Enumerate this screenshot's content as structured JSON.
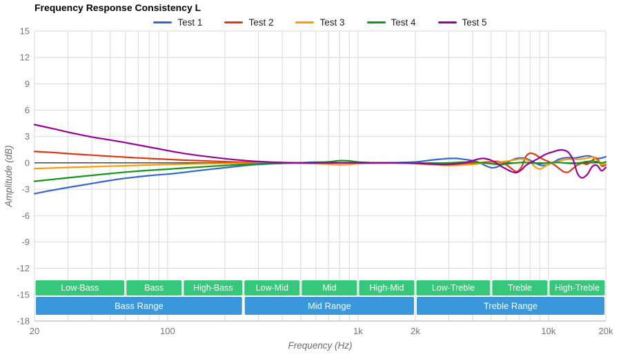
{
  "chart_data": {
    "type": "line",
    "title": "Frequency Response Consistency L",
    "xlabel": "Frequency (Hz)",
    "ylabel": "Amplitude (dB)",
    "x_scale": "log",
    "xlim": [
      20,
      20000
    ],
    "ylim": [
      -18,
      15
    ],
    "grid": true,
    "legend_position": "top",
    "y_ticks": [
      15,
      12,
      9,
      6,
      3,
      0,
      -3,
      -6,
      -9,
      -12,
      -15,
      -18
    ],
    "x_ticks": [
      {
        "f": 20,
        "label": "20"
      },
      {
        "f": 100,
        "label": "100"
      },
      {
        "f": 1000,
        "label": "1k"
      },
      {
        "f": 2000,
        "label": "2k"
      },
      {
        "f": 10000,
        "label": "10k"
      },
      {
        "f": 20000,
        "label": "20k"
      }
    ],
    "x": [
      20,
      25,
      30,
      40,
      50,
      60,
      80,
      100,
      120,
      150,
      200,
      250,
      300,
      400,
      500,
      600,
      700,
      800,
      900,
      1000,
      1200,
      1500,
      1800,
      2000,
      2200,
      2500,
      2800,
      3000,
      3300,
      3600,
      4000,
      4300,
      4600,
      5000,
      5300,
      5600,
      6000,
      6400,
      6800,
      7200,
      7600,
      8000,
      8500,
      9000,
      9500,
      10000,
      10700,
      11300,
      12000,
      12700,
      13500,
      14200,
      15000,
      16000,
      17000,
      18000,
      19000,
      20000
    ],
    "series": [
      {
        "name": "Test 1",
        "color": "#3366CC",
        "values": [
          -3.5,
          -3.1,
          -2.8,
          -2.35,
          -2.0,
          -1.75,
          -1.45,
          -1.28,
          -1.1,
          -0.85,
          -0.55,
          -0.32,
          -0.18,
          -0.06,
          0.02,
          0.08,
          0.06,
          0.02,
          0.0,
          0.0,
          0.0,
          0.02,
          0.06,
          0.1,
          0.2,
          0.35,
          0.45,
          0.5,
          0.5,
          0.4,
          0.25,
          0.05,
          -0.25,
          -0.55,
          -0.5,
          -0.28,
          0.0,
          0.3,
          0.5,
          0.55,
          0.5,
          0.3,
          0.0,
          -0.25,
          -0.3,
          -0.18,
          0.1,
          0.4,
          0.55,
          0.6,
          0.55,
          0.6,
          0.7,
          0.8,
          0.7,
          0.5,
          0.55,
          0.7
        ]
      },
      {
        "name": "Test 2",
        "color": "#DC3912",
        "values": [
          1.3,
          1.18,
          1.05,
          0.88,
          0.75,
          0.65,
          0.5,
          0.4,
          0.32,
          0.24,
          0.14,
          0.08,
          0.04,
          0.0,
          0.0,
          0.0,
          0.0,
          0.0,
          0.0,
          0.0,
          0.0,
          0.0,
          -0.02,
          -0.05,
          -0.08,
          -0.12,
          -0.15,
          -0.15,
          -0.12,
          -0.08,
          -0.04,
          0.0,
          0.06,
          0.12,
          0.18,
          0.1,
          -0.2,
          -0.65,
          -1.0,
          -0.5,
          0.7,
          1.1,
          0.95,
          0.6,
          0.35,
          0.15,
          -0.2,
          -0.6,
          -1.0,
          -1.05,
          -0.6,
          -0.25,
          -0.05,
          -0.15,
          0.3,
          0.5,
          -0.35,
          -0.2
        ]
      },
      {
        "name": "Test 3",
        "color": "#FF9900",
        "values": [
          -0.65,
          -0.58,
          -0.52,
          -0.44,
          -0.38,
          -0.32,
          -0.24,
          -0.18,
          -0.14,
          -0.1,
          -0.06,
          -0.04,
          -0.02,
          -0.02,
          -0.05,
          -0.1,
          -0.16,
          -0.22,
          -0.18,
          -0.1,
          -0.04,
          -0.02,
          -0.05,
          -0.1,
          -0.15,
          -0.22,
          -0.28,
          -0.3,
          -0.28,
          -0.22,
          -0.16,
          -0.1,
          -0.05,
          0.0,
          0.05,
          0.1,
          0.18,
          0.28,
          0.38,
          0.45,
          0.4,
          0.15,
          -0.45,
          -0.7,
          -0.45,
          -0.15,
          0.05,
          0.2,
          0.35,
          0.4,
          0.45,
          0.4,
          0.45,
          0.55,
          0.65,
          0.3,
          -0.2,
          0.1
        ]
      },
      {
        "name": "Test 4",
        "color": "#109618",
        "values": [
          -2.1,
          -1.88,
          -1.7,
          -1.42,
          -1.22,
          -1.05,
          -0.85,
          -0.72,
          -0.6,
          -0.46,
          -0.3,
          -0.18,
          -0.1,
          -0.04,
          0.0,
          0.05,
          0.12,
          0.25,
          0.22,
          0.1,
          0.02,
          0.0,
          0.0,
          0.0,
          -0.04,
          -0.08,
          -0.05,
          0.0,
          0.05,
          0.08,
          0.1,
          0.05,
          0.0,
          -0.1,
          -0.15,
          -0.18,
          -0.12,
          -0.05,
          0.0,
          0.05,
          0.05,
          0.0,
          -0.05,
          -0.08,
          -0.05,
          0.0,
          0.05,
          0.05,
          0.0,
          -0.05,
          -0.08,
          -0.05,
          0.05,
          0.15,
          0.2,
          0.1,
          0.0,
          0.1
        ]
      },
      {
        "name": "Test 5",
        "color": "#990099",
        "values": [
          4.35,
          3.9,
          3.5,
          2.95,
          2.6,
          2.3,
          1.8,
          1.4,
          1.1,
          0.8,
          0.48,
          0.28,
          0.16,
          0.04,
          0.0,
          0.0,
          0.0,
          0.0,
          0.0,
          0.0,
          0.0,
          0.0,
          -0.02,
          -0.05,
          -0.1,
          -0.15,
          -0.18,
          -0.18,
          -0.12,
          0.0,
          0.25,
          0.45,
          0.5,
          0.3,
          0.0,
          -0.35,
          -0.7,
          -1.0,
          -1.1,
          -0.8,
          -0.3,
          0.0,
          0.3,
          0.6,
          0.9,
          1.1,
          1.3,
          1.45,
          1.45,
          1.2,
          0.3,
          -1.2,
          -1.7,
          -1.3,
          -0.4,
          -0.3,
          -0.9,
          -0.5
        ]
      }
    ],
    "frequency_bands": {
      "sub_bands": [
        {
          "label": "Low-Bass",
          "from": 20,
          "to": 60
        },
        {
          "label": "Bass",
          "from": 60,
          "to": 120
        },
        {
          "label": "High-Bass",
          "from": 120,
          "to": 250
        },
        {
          "label": "Low-Mid",
          "from": 250,
          "to": 500
        },
        {
          "label": "Mid",
          "from": 500,
          "to": 1000
        },
        {
          "label": "High-Mid",
          "from": 1000,
          "to": 2000
        },
        {
          "label": "Low-Treble",
          "from": 2000,
          "to": 5000
        },
        {
          "label": "Treble",
          "from": 5000,
          "to": 10000
        },
        {
          "label": "High-Treble",
          "from": 10000,
          "to": 20000
        }
      ],
      "range_bands": [
        {
          "label": "Bass Range",
          "from": 20,
          "to": 250
        },
        {
          "label": "Mid Range",
          "from": 250,
          "to": 2000
        },
        {
          "label": "Treble Range",
          "from": 2000,
          "to": 20000
        }
      ],
      "sub_band_color": "#35c87a",
      "range_band_color": "#3a97dc",
      "band_text_color": "#ffffff"
    }
  },
  "colors": {
    "background": "#ffffff",
    "grid": "#d8d8d8",
    "axis_line": "#a8a8a8",
    "zero_line": "#222222",
    "tick_label": "#757575",
    "axis_title": "#6b6b6b",
    "title": "#000000"
  }
}
